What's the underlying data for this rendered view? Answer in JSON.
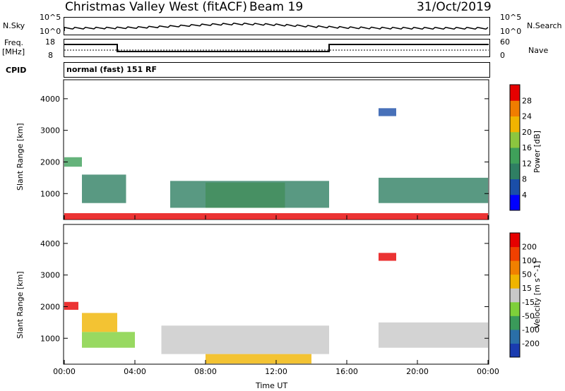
{
  "header": {
    "site": "Christmas Valley West (fitACF)",
    "beam": "Beam 19",
    "date": "31/Oct/2019"
  },
  "strip_panels": {
    "nsky_label": "N.Sky",
    "nsearch_label": "N.Search",
    "freq_label_1": "Freq.",
    "freq_label_2": "[MHz]",
    "nave_label": "Nave",
    "cpid_label": "CPID",
    "cpid_value": "normal (fast) 151 RF",
    "noise_ticks": [
      "10^5",
      "10^0"
    ],
    "freq_ticks": [
      "18",
      "8"
    ],
    "nave_ticks": [
      "60",
      "0"
    ]
  },
  "chart_data": [
    {
      "type": "heatmap",
      "title": "",
      "xlabel": "Time UT",
      "ylabel": "Slant Range [km]",
      "x_ticks": [
        "00:00",
        "04:00",
        "08:00",
        "12:00",
        "16:00",
        "20:00",
        "00:00"
      ],
      "y_ticks": [
        "1000",
        "2000",
        "3000",
        "4000"
      ],
      "ylim": [
        180,
        4600
      ],
      "colorbar": {
        "label": "Power [dB]",
        "ticks": [
          "4",
          "8",
          "12",
          "16",
          "20",
          "24",
          "28"
        ],
        "colors": [
          "#0000ff",
          "#1a4ea8",
          "#2f7f63",
          "#3fa05a",
          "#8cc63f",
          "#f0b400",
          "#f07d00",
          "#e60000"
        ]
      },
      "regions": [
        {
          "t0": 0.0,
          "t1": 1.0,
          "r0": 1850,
          "r1": 2150,
          "level": 3
        },
        {
          "t0": 1.0,
          "t1": 3.5,
          "r0": 700,
          "r1": 1600,
          "level": 2
        },
        {
          "t0": 8.0,
          "t1": 12.5,
          "r0": 550,
          "r1": 1350,
          "level": 4
        },
        {
          "t0": 6.0,
          "t1": 15.0,
          "r0": 550,
          "r1": 1400,
          "level": 2
        },
        {
          "t0": 17.8,
          "t1": 24.0,
          "r0": 700,
          "r1": 1500,
          "level": 2
        },
        {
          "t0": 0.0,
          "t1": 24.0,
          "r0": 180,
          "r1": 380,
          "level": 7
        },
        {
          "t0": 17.8,
          "t1": 18.8,
          "r0": 3450,
          "r1": 3700,
          "level": 1
        }
      ]
    },
    {
      "type": "heatmap",
      "title": "",
      "xlabel": "Time UT",
      "ylabel": "Slant Range [km]",
      "x_ticks": [
        "00:00",
        "04:00",
        "08:00",
        "12:00",
        "16:00",
        "20:00",
        "00:00"
      ],
      "y_ticks": [
        "1000",
        "2000",
        "3000",
        "4000"
      ],
      "ylim": [
        180,
        4600
      ],
      "colorbar": {
        "label": "Velocity [m s^-1]",
        "ticks": [
          "200",
          "100",
          "50",
          "15",
          "-15",
          "-50",
          "-100",
          "-200"
        ],
        "colors": [
          "#1a3cb0",
          "#2a6fa8",
          "#3a9a5a",
          "#7ed03a",
          "#c8c8c8",
          "#f0b400",
          "#f08000",
          "#f04000",
          "#e60000"
        ]
      },
      "regions": [
        {
          "t0": 0.0,
          "t1": 0.8,
          "r0": 1900,
          "r1": 2150,
          "level": 8
        },
        {
          "t0": 1.0,
          "t1": 4.0,
          "r0": 700,
          "r1": 1200,
          "level": 3
        },
        {
          "t0": 1.0,
          "t1": 3.0,
          "r0": 1200,
          "r1": 1800,
          "level": 5
        },
        {
          "t0": 5.5,
          "t1": 15.0,
          "r0": 500,
          "r1": 1400,
          "level": 4
        },
        {
          "t0": 8.0,
          "t1": 14.0,
          "r0": 200,
          "r1": 500,
          "level": 5
        },
        {
          "t0": 17.8,
          "t1": 24.0,
          "r0": 700,
          "r1": 1500,
          "level": 4
        },
        {
          "t0": 17.8,
          "t1": 18.8,
          "r0": 3450,
          "r1": 3700,
          "level": 8
        }
      ]
    }
  ]
}
